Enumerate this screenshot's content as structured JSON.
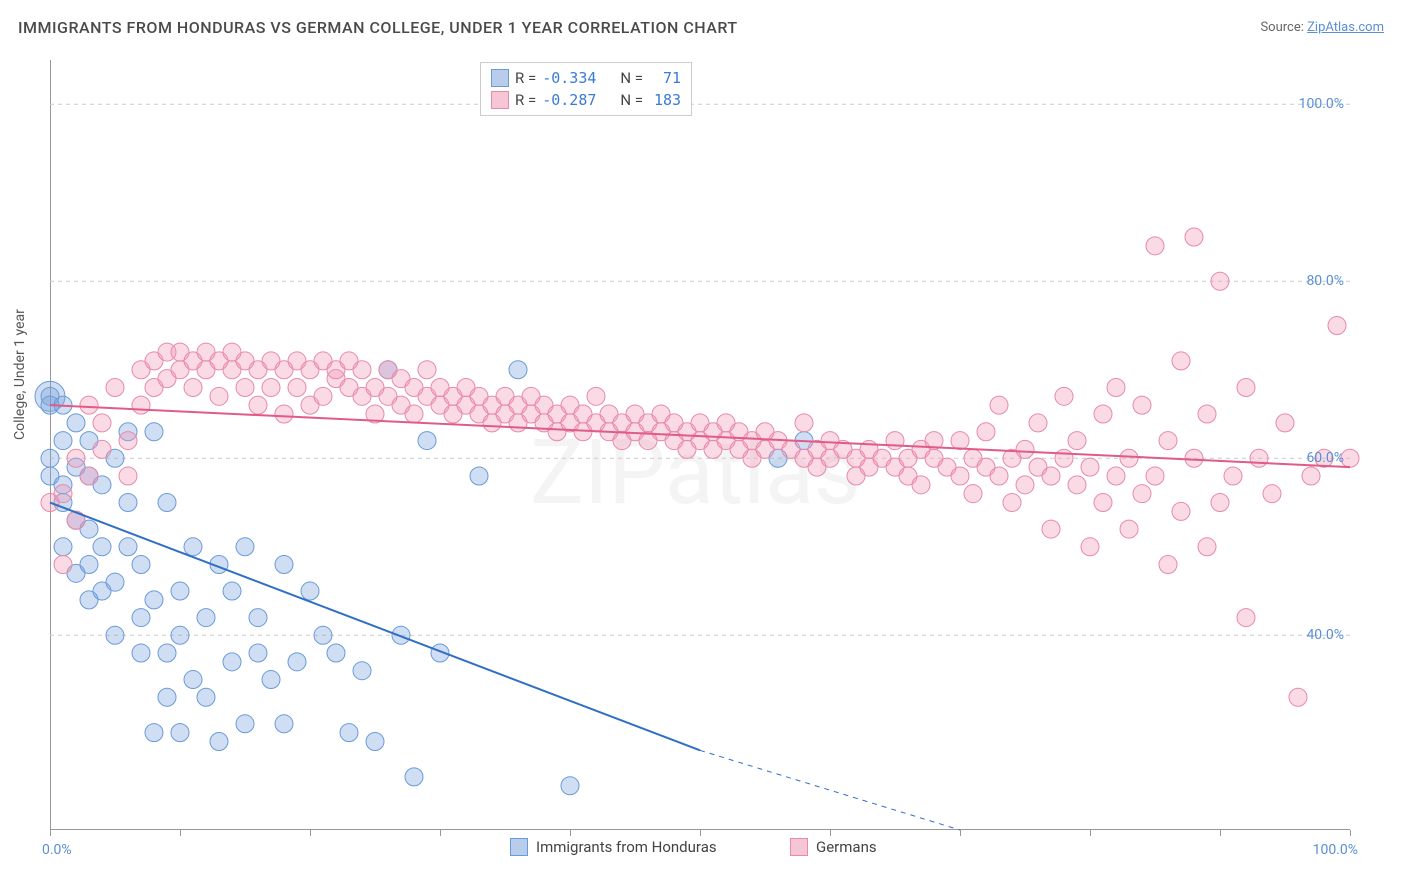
{
  "title": "IMMIGRANTS FROM HONDURAS VS GERMAN COLLEGE, UNDER 1 YEAR CORRELATION CHART",
  "source_label": "Source:",
  "source_name": "ZipAtlas.com",
  "y_axis_label": "College, Under 1 year",
  "watermark": "ZIPatlas",
  "chart": {
    "type": "scatter",
    "xlim": [
      0,
      100
    ],
    "ylim": [
      18,
      105
    ],
    "x_ticks": [
      0,
      10,
      20,
      30,
      40,
      50,
      60,
      70,
      80,
      90,
      100
    ],
    "y_gridlines": [
      40,
      60,
      80,
      100
    ],
    "y_tick_labels": [
      "40.0%",
      "60.0%",
      "80.0%",
      "100.0%"
    ],
    "x_axis_left_label": "0.0%",
    "x_axis_right_label": "100.0%",
    "background_color": "#ffffff",
    "grid_color": "#cccccc",
    "axis_color": "#999999",
    "axis_label_color": "#5a8fd6",
    "series": [
      {
        "name": "Immigrants from Honduras",
        "color_fill": "rgba(120,160,220,0.35)",
        "color_stroke": "#6a9bd8",
        "swatch_fill": "#b8cdec",
        "swatch_stroke": "#6a9bd8",
        "line_color": "#2f6fc4",
        "line_width": 2,
        "marker_radius": 9,
        "regression": {
          "x1": 0,
          "y1": 55,
          "x2": 50,
          "y2": 27,
          "x2_dash": 70,
          "y2_dash": 18
        },
        "R": "-0.334",
        "N": "71",
        "points": [
          [
            0,
            67
          ],
          [
            0,
            66
          ],
          [
            0,
            60
          ],
          [
            0,
            58
          ],
          [
            1,
            62
          ],
          [
            1,
            66
          ],
          [
            1,
            55
          ],
          [
            1,
            50
          ],
          [
            1,
            57
          ],
          [
            2,
            59
          ],
          [
            2,
            64
          ],
          [
            2,
            53
          ],
          [
            2,
            47
          ],
          [
            3,
            62
          ],
          [
            3,
            58
          ],
          [
            3,
            52
          ],
          [
            3,
            48
          ],
          [
            3,
            44
          ],
          [
            4,
            57
          ],
          [
            4,
            50
          ],
          [
            4,
            45
          ],
          [
            5,
            60
          ],
          [
            5,
            46
          ],
          [
            5,
            40
          ],
          [
            6,
            55
          ],
          [
            6,
            50
          ],
          [
            6,
            63
          ],
          [
            7,
            42
          ],
          [
            7,
            48
          ],
          [
            7,
            38
          ],
          [
            8,
            63
          ],
          [
            8,
            44
          ],
          [
            8,
            29
          ],
          [
            9,
            55
          ],
          [
            9,
            38
          ],
          [
            9,
            33
          ],
          [
            10,
            45
          ],
          [
            10,
            40
          ],
          [
            10,
            29
          ],
          [
            11,
            50
          ],
          [
            11,
            35
          ],
          [
            12,
            42
          ],
          [
            12,
            33
          ],
          [
            13,
            48
          ],
          [
            13,
            28
          ],
          [
            14,
            45
          ],
          [
            14,
            37
          ],
          [
            15,
            50
          ],
          [
            15,
            30
          ],
          [
            16,
            42
          ],
          [
            16,
            38
          ],
          [
            17,
            35
          ],
          [
            18,
            48
          ],
          [
            18,
            30
          ],
          [
            19,
            37
          ],
          [
            20,
            45
          ],
          [
            21,
            40
          ],
          [
            22,
            38
          ],
          [
            23,
            29
          ],
          [
            24,
            36
          ],
          [
            25,
            28
          ],
          [
            26,
            70
          ],
          [
            27,
            40
          ],
          [
            28,
            24
          ],
          [
            29,
            62
          ],
          [
            30,
            38
          ],
          [
            33,
            58
          ],
          [
            36,
            70
          ],
          [
            40,
            23
          ],
          [
            56,
            60
          ],
          [
            58,
            62
          ]
        ]
      },
      {
        "name": "Germans",
        "color_fill": "rgba(240,150,180,0.35)",
        "color_stroke": "#e88aa8",
        "swatch_fill": "#f6c5d6",
        "swatch_stroke": "#e88aa8",
        "line_color": "#e05a8a",
        "line_width": 2,
        "marker_radius": 9,
        "regression": {
          "x1": 0,
          "y1": 66,
          "x2": 100,
          "y2": 59
        },
        "R": "-0.287",
        "N": "183",
        "points": [
          [
            0,
            55
          ],
          [
            1,
            56
          ],
          [
            1,
            48
          ],
          [
            2,
            60
          ],
          [
            2,
            53
          ],
          [
            3,
            66
          ],
          [
            3,
            58
          ],
          [
            4,
            61
          ],
          [
            4,
            64
          ],
          [
            5,
            68
          ],
          [
            6,
            58
          ],
          [
            6,
            62
          ],
          [
            7,
            70
          ],
          [
            7,
            66
          ],
          [
            8,
            71
          ],
          [
            8,
            68
          ],
          [
            9,
            72
          ],
          [
            9,
            69
          ],
          [
            10,
            72
          ],
          [
            10,
            70
          ],
          [
            11,
            71
          ],
          [
            11,
            68
          ],
          [
            12,
            72
          ],
          [
            12,
            70
          ],
          [
            13,
            71
          ],
          [
            13,
            67
          ],
          [
            14,
            70
          ],
          [
            14,
            72
          ],
          [
            15,
            68
          ],
          [
            15,
            71
          ],
          [
            16,
            70
          ],
          [
            16,
            66
          ],
          [
            17,
            71
          ],
          [
            17,
            68
          ],
          [
            18,
            70
          ],
          [
            18,
            65
          ],
          [
            19,
            71
          ],
          [
            19,
            68
          ],
          [
            20,
            70
          ],
          [
            20,
            66
          ],
          [
            21,
            71
          ],
          [
            21,
            67
          ],
          [
            22,
            69
          ],
          [
            22,
            70
          ],
          [
            23,
            68
          ],
          [
            23,
            71
          ],
          [
            24,
            67
          ],
          [
            24,
            70
          ],
          [
            25,
            68
          ],
          [
            25,
            65
          ],
          [
            26,
            70
          ],
          [
            26,
            67
          ],
          [
            27,
            69
          ],
          [
            27,
            66
          ],
          [
            28,
            68
          ],
          [
            28,
            65
          ],
          [
            29,
            67
          ],
          [
            29,
            70
          ],
          [
            30,
            66
          ],
          [
            30,
            68
          ],
          [
            31,
            65
          ],
          [
            31,
            67
          ],
          [
            32,
            66
          ],
          [
            32,
            68
          ],
          [
            33,
            65
          ],
          [
            33,
            67
          ],
          [
            34,
            66
          ],
          [
            34,
            64
          ],
          [
            35,
            67
          ],
          [
            35,
            65
          ],
          [
            36,
            66
          ],
          [
            36,
            64
          ],
          [
            37,
            65
          ],
          [
            37,
            67
          ],
          [
            38,
            64
          ],
          [
            38,
            66
          ],
          [
            39,
            65
          ],
          [
            39,
            63
          ],
          [
            40,
            66
          ],
          [
            40,
            64
          ],
          [
            41,
            65
          ],
          [
            41,
            63
          ],
          [
            42,
            64
          ],
          [
            42,
            67
          ],
          [
            43,
            63
          ],
          [
            43,
            65
          ],
          [
            44,
            64
          ],
          [
            44,
            62
          ],
          [
            45,
            65
          ],
          [
            45,
            63
          ],
          [
            46,
            64
          ],
          [
            46,
            62
          ],
          [
            47,
            63
          ],
          [
            47,
            65
          ],
          [
            48,
            62
          ],
          [
            48,
            64
          ],
          [
            49,
            63
          ],
          [
            49,
            61
          ],
          [
            50,
            64
          ],
          [
            50,
            62
          ],
          [
            51,
            63
          ],
          [
            51,
            61
          ],
          [
            52,
            62
          ],
          [
            52,
            64
          ],
          [
            53,
            61
          ],
          [
            53,
            63
          ],
          [
            54,
            62
          ],
          [
            54,
            60
          ],
          [
            55,
            63
          ],
          [
            55,
            61
          ],
          [
            56,
            62
          ],
          [
            57,
            61
          ],
          [
            58,
            60
          ],
          [
            58,
            64
          ],
          [
            59,
            61
          ],
          [
            59,
            59
          ],
          [
            60,
            62
          ],
          [
            60,
            60
          ],
          [
            61,
            61
          ],
          [
            62,
            60
          ],
          [
            62,
            58
          ],
          [
            63,
            61
          ],
          [
            63,
            59
          ],
          [
            64,
            60
          ],
          [
            65,
            59
          ],
          [
            65,
            62
          ],
          [
            66,
            60
          ],
          [
            66,
            58
          ],
          [
            67,
            61
          ],
          [
            67,
            57
          ],
          [
            68,
            60
          ],
          [
            68,
            62
          ],
          [
            69,
            59
          ],
          [
            70,
            58
          ],
          [
            70,
            62
          ],
          [
            71,
            60
          ],
          [
            71,
            56
          ],
          [
            72,
            59
          ],
          [
            72,
            63
          ],
          [
            73,
            58
          ],
          [
            73,
            66
          ],
          [
            74,
            60
          ],
          [
            74,
            55
          ],
          [
            75,
            61
          ],
          [
            75,
            57
          ],
          [
            76,
            59
          ],
          [
            76,
            64
          ],
          [
            77,
            58
          ],
          [
            77,
            52
          ],
          [
            78,
            60
          ],
          [
            78,
            67
          ],
          [
            79,
            57
          ],
          [
            79,
            62
          ],
          [
            80,
            59
          ],
          [
            80,
            50
          ],
          [
            81,
            65
          ],
          [
            81,
            55
          ],
          [
            82,
            58
          ],
          [
            82,
            68
          ],
          [
            83,
            52
          ],
          [
            83,
            60
          ],
          [
            84,
            66
          ],
          [
            84,
            56
          ],
          [
            85,
            84
          ],
          [
            85,
            58
          ],
          [
            86,
            62
          ],
          [
            86,
            48
          ],
          [
            87,
            71
          ],
          [
            87,
            54
          ],
          [
            88,
            60
          ],
          [
            88,
            85
          ],
          [
            89,
            50
          ],
          [
            89,
            65
          ],
          [
            90,
            80
          ],
          [
            90,
            55
          ],
          [
            91,
            58
          ],
          [
            92,
            68
          ],
          [
            92,
            42
          ],
          [
            93,
            60
          ],
          [
            94,
            56
          ],
          [
            95,
            64
          ],
          [
            96,
            33
          ],
          [
            97,
            58
          ],
          [
            98,
            60
          ],
          [
            99,
            75
          ],
          [
            100,
            60
          ]
        ]
      }
    ]
  },
  "legend_stats": {
    "R_label": "R =",
    "N_label": "N ="
  },
  "bottom_legend": {
    "series1": "Immigrants from Honduras",
    "series2": "Germans"
  }
}
